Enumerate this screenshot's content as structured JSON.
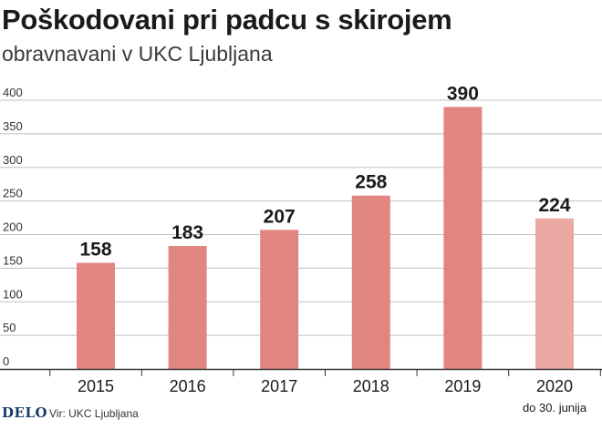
{
  "header": {
    "title": "Poškodovani pri padcu s skirojem",
    "subtitle": "obravnavani v UKC Ljubljana"
  },
  "footer": {
    "logo": "DELO",
    "source": "Vir: UKC Ljubljana"
  },
  "colors": {
    "bar": "#e08580",
    "bar_highlight": "#eba9a4",
    "grid": "#bfbfbf",
    "axis": "#333333"
  },
  "chart_data": {
    "type": "bar",
    "categories": [
      "2015",
      "2016",
      "2017",
      "2018",
      "2019",
      "2020"
    ],
    "category_notes": [
      "",
      "",
      "",
      "",
      "",
      "do 30. junija"
    ],
    "values": [
      158,
      183,
      207,
      258,
      390,
      224
    ],
    "data_labels": [
      "158",
      "183",
      "207",
      "258",
      "390",
      "224"
    ],
    "ylim": [
      0,
      400
    ],
    "yticks": [
      0,
      50,
      100,
      150,
      200,
      250,
      300,
      350,
      400
    ],
    "grid": true,
    "highlight_index": 5,
    "title": "Poškodovani pri padcu s skirojem",
    "xlabel": "",
    "ylabel": ""
  }
}
